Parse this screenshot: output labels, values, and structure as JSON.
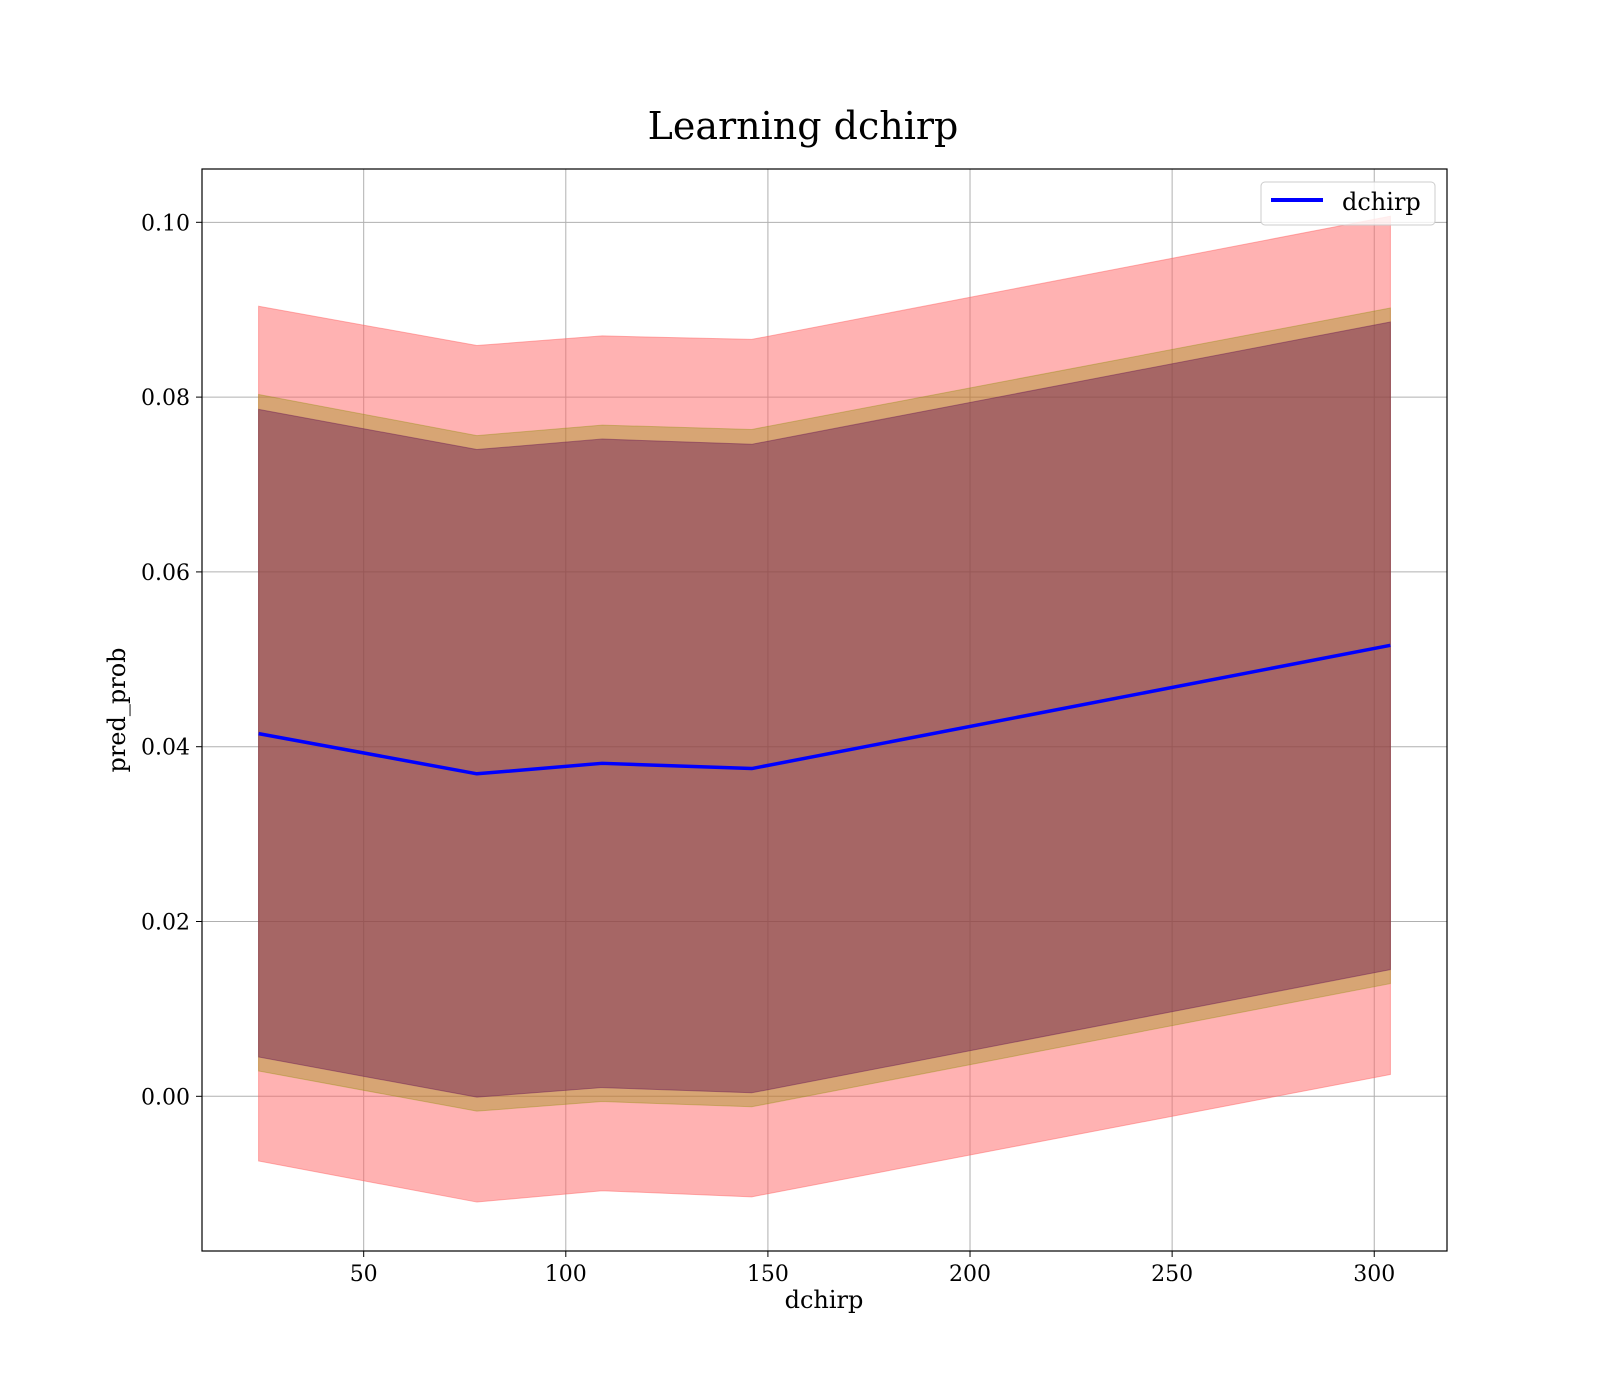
{
  "chart_data": {
    "type": "line",
    "title": "Learning dchirp",
    "xlabel": "dchirp",
    "ylabel": "pred_prob",
    "xlim": [
      10,
      318
    ],
    "ylim": [
      -0.0177,
      0.1061
    ],
    "xticks": [
      50,
      100,
      150,
      200,
      250,
      300
    ],
    "xtick_labels": [
      "50",
      "100",
      "150",
      "200",
      "250",
      "300"
    ],
    "yticks": [
      0.0,
      0.02,
      0.04,
      0.06,
      0.08,
      0.1
    ],
    "ytick_labels": [
      "0.00",
      "0.02",
      "0.04",
      "0.06",
      "0.08",
      "0.10"
    ],
    "grid": true,
    "legend_position": "top-right",
    "x": [
      24,
      78,
      109,
      146,
      304
    ],
    "series": [
      {
        "name": "dchirp",
        "color": "#0000ff",
        "values": [
          0.0415,
          0.0369,
          0.0381,
          0.0375,
          0.0516
        ]
      }
    ],
    "bands": [
      {
        "color": "#ff6666",
        "opacity": 0.5,
        "upper": [
          0.0904,
          0.0859,
          0.087,
          0.0866,
          0.1007
        ],
        "lower": [
          -0.0074,
          -0.0121,
          -0.0108,
          -0.0115,
          0.0025
        ]
      },
      {
        "color": "#8b8b00",
        "opacity": 0.35,
        "upper": [
          0.0803,
          0.0756,
          0.0768,
          0.0763,
          0.0902
        ],
        "lower": [
          0.0029,
          -0.0017,
          -0.0006,
          -0.0012,
          0.0129
        ]
      },
      {
        "color": "#6a1a55",
        "opacity": 0.45,
        "upper": [
          0.0786,
          0.074,
          0.0752,
          0.0746,
          0.0886
        ],
        "lower": [
          0.0045,
          -0.0001,
          0.001,
          0.0004,
          0.0145
        ]
      }
    ]
  }
}
